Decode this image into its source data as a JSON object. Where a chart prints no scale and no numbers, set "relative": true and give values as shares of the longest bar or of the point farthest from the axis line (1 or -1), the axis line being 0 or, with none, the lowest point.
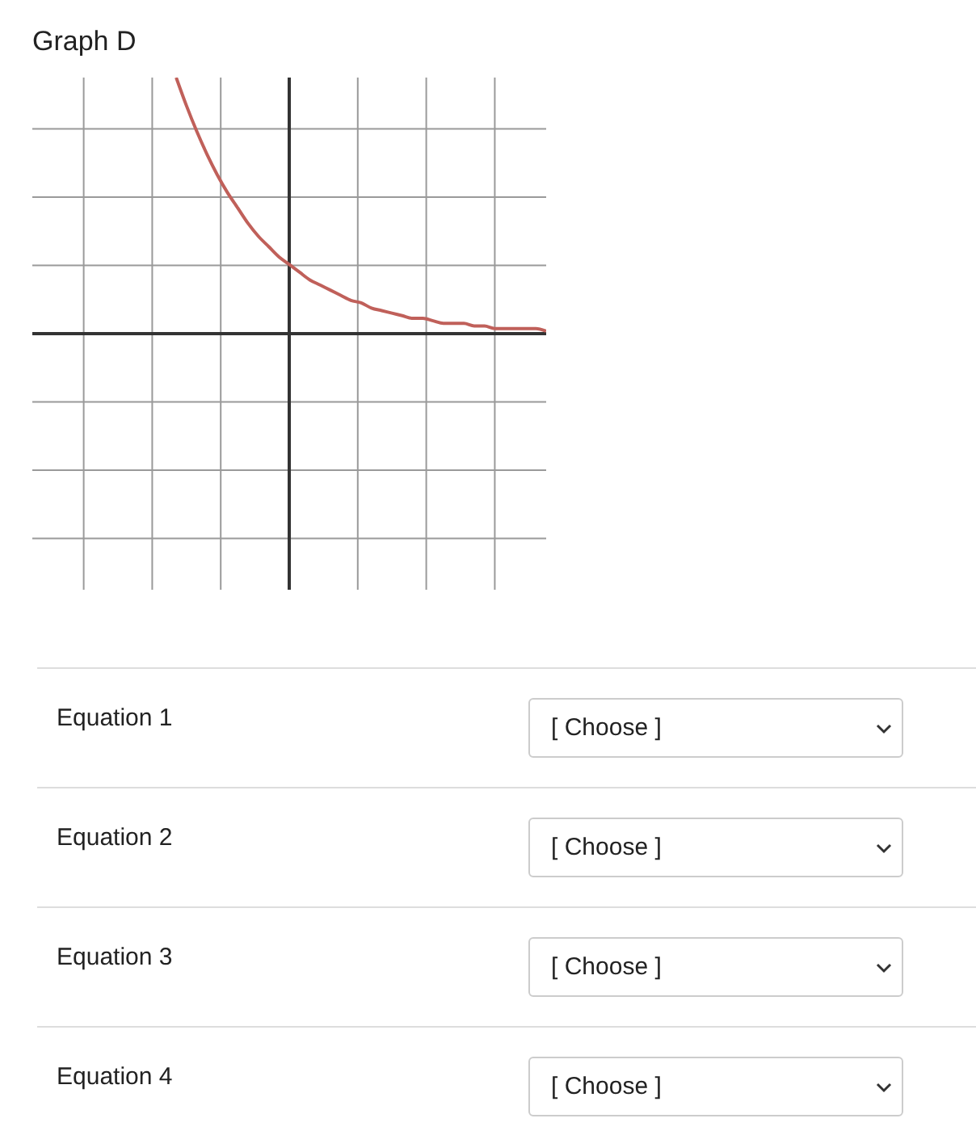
{
  "chart_data": [
    {
      "type": "line",
      "title": "Graph D",
      "relative": true,
      "grid": true,
      "tick_labels": false,
      "categories": [
        null,
        null,
        null,
        null,
        null,
        null,
        null,
        null,
        null,
        null,
        null,
        null,
        null,
        null,
        null,
        null,
        null,
        null,
        null,
        null,
        null,
        null,
        null,
        null,
        null,
        null,
        null,
        null,
        null,
        null,
        null,
        null,
        null,
        null,
        null,
        null,
        null,
        null,
        null,
        null,
        null,
        null,
        null,
        null,
        null,
        null,
        null,
        null,
        null,
        null,
        null
      ],
      "series": [
        {
          "color": "#c0605a",
          "values": [
            null,
            null,
            null,
            null,
            null,
            null,
            null,
            null,
            null,
            null,
            null,
            null,
            null,
            null,
            1,
            0.89,
            0.79,
            0.7,
            0.62,
            0.55,
            0.49,
            0.43,
            0.38,
            0.34,
            0.3,
            0.27,
            0.24,
            0.21,
            0.19,
            0.17,
            0.15,
            0.13,
            0.12,
            0.1,
            0.09,
            0.08,
            0.07,
            0.06,
            0.06,
            0.05,
            0.04,
            0.04,
            0.04,
            0.03,
            0.03,
            0.02,
            0.02,
            0.02,
            0.02,
            0.02,
            0.01
          ]
        }
      ]
    },
    {
      "type": "other",
      "annotations": [
        "Equation 1",
        "[ Choose ]",
        "Equation 2",
        "[ Choose ]",
        "Equation 3",
        "[ Choose ]",
        "Equation 4",
        "[ Choose ]"
      ]
    }
  ]
}
